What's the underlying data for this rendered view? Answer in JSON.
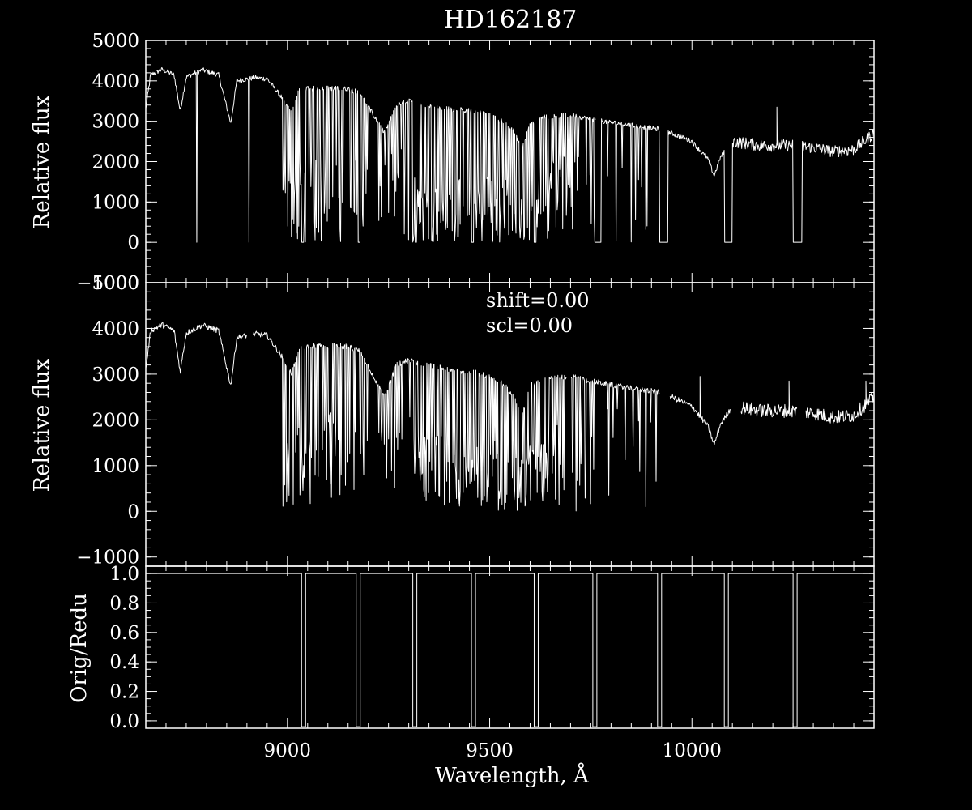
{
  "colors": {
    "background": "#000000",
    "foreground": "#ffffff"
  },
  "title": "HD162187",
  "xlabel": "Wavelength, Å",
  "chart_data": [
    {
      "type": "line",
      "panel": "top",
      "ylabel": "Relative flux",
      "xlim": [
        8650,
        10450
      ],
      "ylim": [
        -1000,
        5000
      ],
      "xticks": [
        9000,
        9500,
        10000
      ],
      "yticks": [
        "-1000",
        "0",
        "1000",
        "2000",
        "3000",
        "4000",
        "5000"
      ],
      "continuum": [
        [
          8650,
          3300
        ],
        [
          8662,
          4150
        ],
        [
          8690,
          4280
        ],
        [
          8720,
          4150
        ],
        [
          8735,
          3250
        ],
        [
          8750,
          4100
        ],
        [
          8790,
          4270
        ],
        [
          8830,
          4150
        ],
        [
          8860,
          2950
        ],
        [
          8875,
          4000
        ],
        [
          8920,
          4080
        ],
        [
          8950,
          4050
        ],
        [
          8985,
          3600
        ],
        [
          9010,
          3200
        ],
        [
          9030,
          3800
        ],
        [
          9100,
          3820
        ],
        [
          9150,
          3800
        ],
        [
          9180,
          3700
        ],
        [
          9210,
          3200
        ],
        [
          9240,
          2700
        ],
        [
          9270,
          3400
        ],
        [
          9300,
          3500
        ],
        [
          9340,
          3400
        ],
        [
          9400,
          3300
        ],
        [
          9460,
          3250
        ],
        [
          9500,
          3150
        ],
        [
          9530,
          3000
        ],
        [
          9560,
          2750
        ],
        [
          9580,
          2300
        ],
        [
          9600,
          2950
        ],
        [
          9630,
          3100
        ],
        [
          9700,
          3150
        ],
        [
          9750,
          3050
        ],
        [
          9780,
          3000
        ],
        [
          9850,
          2900
        ],
        [
          9920,
          2800
        ],
        [
          9950,
          2700
        ],
        [
          10000,
          2500
        ],
        [
          10040,
          2050
        ],
        [
          10055,
          1650
        ],
        [
          10070,
          2100
        ],
        [
          10100,
          2500
        ],
        [
          10170,
          2400
        ],
        [
          10250,
          2400
        ],
        [
          10300,
          2350
        ],
        [
          10350,
          2250
        ],
        [
          10400,
          2300
        ],
        [
          10450,
          2700
        ]
      ],
      "absorption_bands": [
        [
          8985,
          9060,
          1
        ],
        [
          9060,
          9200,
          0.8
        ],
        [
          9220,
          9310,
          0.5
        ],
        [
          9310,
          9650,
          1
        ],
        [
          9650,
          9760,
          0.6
        ],
        [
          9760,
          9920,
          0.25
        ]
      ],
      "gaps": [
        [
          8775,
          8776
        ],
        [
          8905,
          8906
        ],
        [
          9035,
          9040
        ],
        [
          9175,
          9180
        ],
        [
          9315,
          9320
        ],
        [
          9455,
          9460
        ],
        [
          9610,
          9615
        ],
        [
          9760,
          9775
        ],
        [
          9920,
          9940
        ],
        [
          10080,
          10100
        ],
        [
          10250,
          10272
        ]
      ],
      "spikes": [
        [
          10210,
          3350
        ],
        [
          9760,
          3100
        ]
      ]
    },
    {
      "type": "line",
      "panel": "middle",
      "ylabel": "Relative flux",
      "xlim": [
        8650,
        10450
      ],
      "ylim": [
        -1200,
        5000
      ],
      "xticks": [
        9000,
        9500,
        10000
      ],
      "yticks": [
        "-1000",
        "0",
        "1000",
        "2000",
        "3000",
        "4000",
        "5000"
      ],
      "annotations": [
        "shift=0.00",
        "scl=0.00"
      ],
      "gaps": [
        [
          8900,
          8915
        ],
        [
          9690,
          9700
        ],
        [
          9920,
          9945
        ],
        [
          10095,
          10120
        ],
        [
          10260,
          10280
        ]
      ],
      "spikes": [
        [
          10020,
          2950
        ],
        [
          10240,
          2850
        ],
        [
          10430,
          2850
        ]
      ]
    },
    {
      "type": "line",
      "panel": "bottom",
      "ylabel": "Orig/Redu",
      "xlim": [
        8650,
        10450
      ],
      "ylim": [
        -0.05,
        1.05
      ],
      "xticks": [
        9000,
        9500,
        10000
      ],
      "yticks": [
        "0.0",
        "0.2",
        "0.4",
        "0.6",
        "0.8",
        "1.0"
      ],
      "gaps": [
        [
          8745,
          8800
        ],
        [
          8905,
          8910
        ],
        [
          9035,
          9040
        ],
        [
          9170,
          9180
        ],
        [
          9310,
          9320
        ],
        [
          9455,
          9465
        ],
        [
          9610,
          9620
        ],
        [
          9755,
          9765
        ],
        [
          9915,
          9925
        ],
        [
          10080,
          10090
        ],
        [
          10250,
          10260
        ]
      ],
      "drops": [
        9035,
        9045,
        9170,
        9180,
        9310,
        9320,
        9455,
        9465,
        9610,
        9620,
        9755,
        9765,
        9915,
        9925,
        10080,
        10090,
        10250,
        10260
      ]
    }
  ]
}
